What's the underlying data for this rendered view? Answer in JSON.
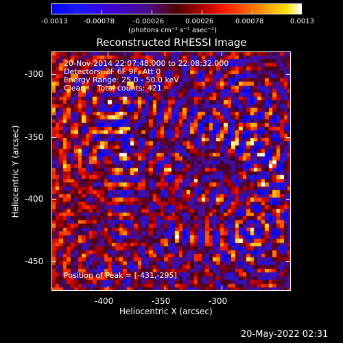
{
  "colorbar": {
    "tick_labels": [
      "-0.0013",
      "-0.00078",
      "-0.00026",
      "0.00026",
      "0.00078",
      "0.0013"
    ],
    "units": "(photons cm⁻² s⁻¹ asec⁻²)"
  },
  "chart_data": {
    "type": "heatmap",
    "title": "Reconstructed RHESSI Image",
    "xlabel": "Heliocentric X (arcsec)",
    "ylabel": "Heliocentric Y (arcsec)",
    "x_ticks": [
      -400,
      -350,
      -300
    ],
    "y_ticks": [
      -300,
      -350,
      -400,
      -450
    ],
    "xlim": [
      -446,
      -252
    ],
    "ylim": [
      -472,
      -278
    ],
    "colorbar_range": [
      -0.0013,
      0.0013
    ],
    "peak_position": [
      -431,
      -295
    ]
  },
  "annotations": {
    "time": "20-Nov-2014 22:07:48.000 to 22:08:32.000",
    "detectors": "Detectors: 3F 6F 9F, Att 0",
    "energy": "Energy Range: 25.0 - 50.0 keV",
    "method": "Clean     Total counts: 421.",
    "peak": "Position of Peak = [-431,-295]"
  },
  "footer": {
    "timestamp": "20-May-2022 02:31"
  }
}
